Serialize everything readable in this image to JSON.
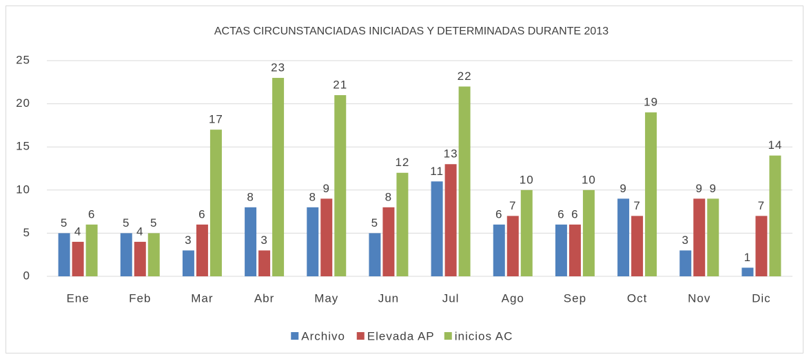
{
  "chart_data": {
    "type": "bar",
    "title": "ACTAS CIRCUNSTANCIADAS INICIADAS Y DETERMINADAS DURANTE 2013",
    "categories": [
      "Ene",
      "Feb",
      "Mar",
      "Abr",
      "May",
      "Jun",
      "Jul",
      "Ago",
      "Sep",
      "Oct",
      "Nov",
      "Dic"
    ],
    "series": [
      {
        "name": "Archivo",
        "color": "#4f81bd",
        "values": [
          5,
          5,
          3,
          8,
          8,
          5,
          11,
          6,
          6,
          9,
          3,
          1
        ]
      },
      {
        "name": "Elevada AP",
        "color": "#c0504d",
        "values": [
          4,
          4,
          6,
          3,
          9,
          8,
          13,
          7,
          6,
          7,
          9,
          7
        ]
      },
      {
        "name": "inicios AC",
        "color": "#9bbb59",
        "values": [
          6,
          5,
          17,
          23,
          21,
          12,
          22,
          10,
          10,
          19,
          9,
          14
        ]
      }
    ],
    "ylim": [
      0,
      25
    ],
    "yticks": [
      0,
      5,
      10,
      15,
      20,
      25
    ],
    "grid": true,
    "legend": "bottom"
  }
}
